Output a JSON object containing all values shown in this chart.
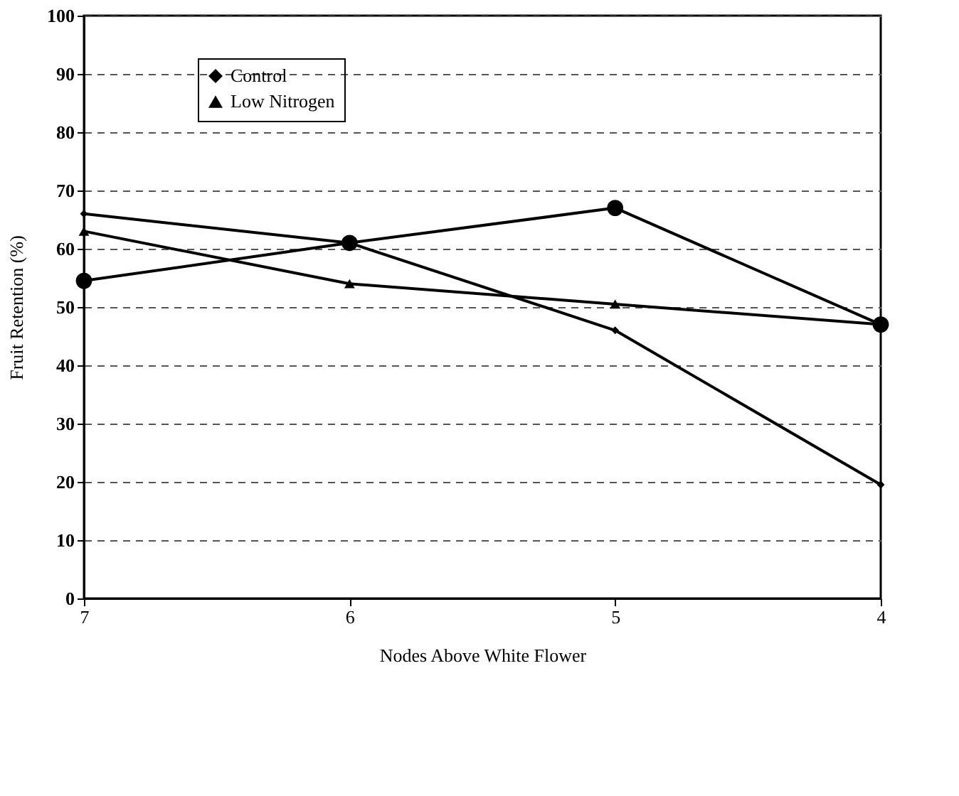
{
  "chart_data": {
    "type": "line",
    "xlabel": "Nodes Above White Flower",
    "ylabel": "Fruit Retention (%)",
    "categories": [
      "7",
      "6",
      "5",
      "4"
    ],
    "series": [
      {
        "name": "Control",
        "color": "#000000",
        "marker": "diamond",
        "values": [
          66,
          61,
          46,
          19.5
        ]
      },
      {
        "color": "#000000",
        "marker": "circle",
        "values": [
          54.5,
          61,
          67,
          47
        ]
      },
      {
        "name": "Low Nitrogen",
        "color": "#000000",
        "marker": "triangle",
        "values": [
          63,
          54,
          50.5,
          47
        ]
      }
    ],
    "ylim": [
      0,
      100
    ],
    "yticks": [
      0,
      10,
      20,
      30,
      40,
      50,
      60,
      70,
      80,
      90,
      100
    ],
    "grid": "y",
    "legend": "top left",
    "line_style": "solid"
  }
}
